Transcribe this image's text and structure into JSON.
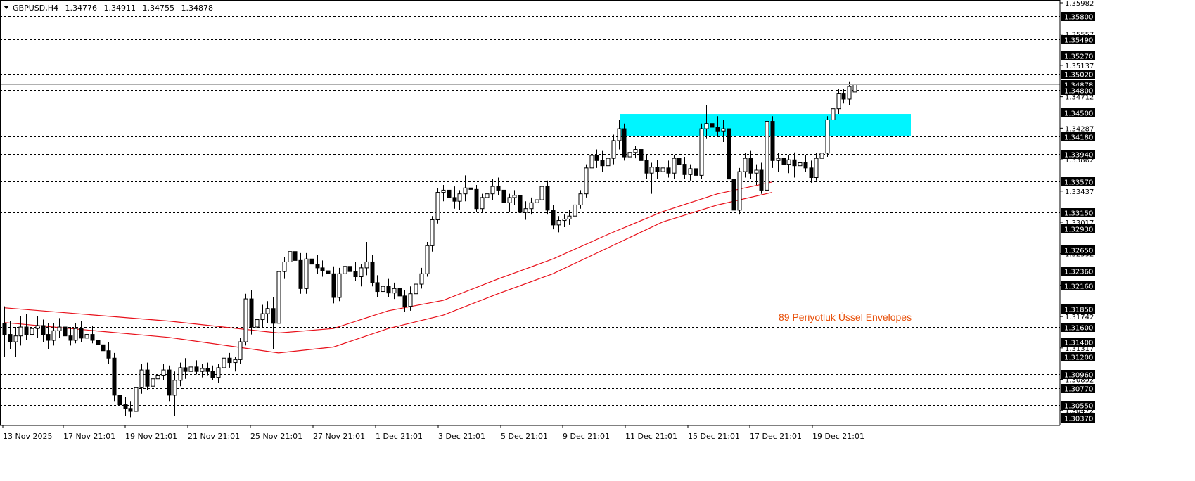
{
  "header": {
    "symbol": "GBPUSD,H4",
    "open": "1.34776",
    "high": "1.34911",
    "low": "1.34755",
    "close": "1.34878"
  },
  "colors": {
    "grid": "#000000",
    "zone": "#00f5ff",
    "envelope": "#e8101a",
    "annotation": "#e8500a",
    "candle_up_fill": "#ffffff",
    "candle_down_fill": "#000000",
    "level_box": "#000000"
  },
  "chart_data": {
    "type": "candlestick",
    "ylim": [
      1.3027,
      1.35982
    ],
    "ytick_labels": [
      "1.35982",
      "1.35557",
      "1.35137",
      "1.34712",
      "1.34287",
      "1.33862",
      "1.33437",
      "1.33017",
      "1.32592",
      "1.32167",
      "1.31742",
      "1.31317",
      "1.30892",
      "1.30472"
    ],
    "level_lines": [
      "1.35800",
      "1.35490",
      "1.35270",
      "1.35020",
      "1.34800",
      "1.34500",
      "1.34180",
      "1.33940",
      "1.33570",
      "1.33150",
      "1.32930",
      "1.32650",
      "1.32360",
      "1.32160",
      "1.31850",
      "1.31600",
      "1.31400",
      "1.31200",
      "1.30960",
      "1.30770",
      "1.30550",
      "1.30370"
    ],
    "current_price": "1.34878",
    "xtick_labels": [
      "13 Nov 2025",
      "17 Nov 21:01",
      "19 Nov 21:01",
      "21 Nov 21:01",
      "25 Nov 21:01",
      "27 Nov 21:01",
      "1 Dec 21:01",
      "3 Dec 21:01",
      "5 Dec 21:01",
      "9 Dec 21:01",
      "11 Dec 21:01",
      "15 Dec 21:01",
      "17 Dec 21:01",
      "19 Dec 21:01"
    ],
    "zone": {
      "low": 1.3418,
      "high": 1.3448
    },
    "annotation": "89  Periyotluk Üssel Envelopes",
    "series_ohlc": [
      [
        1.3165,
        1.3188,
        1.312,
        1.315
      ],
      [
        1.315,
        1.3168,
        1.313,
        1.314
      ],
      [
        1.314,
        1.316,
        1.312,
        1.3148
      ],
      [
        1.3148,
        1.3175,
        1.3135,
        1.316
      ],
      [
        1.316,
        1.3178,
        1.3142,
        1.315
      ],
      [
        1.315,
        1.317,
        1.3135,
        1.3158
      ],
      [
        1.3158,
        1.3175,
        1.3145,
        1.3162
      ],
      [
        1.3162,
        1.317,
        1.314,
        1.315
      ],
      [
        1.315,
        1.3165,
        1.313,
        1.3142
      ],
      [
        1.3142,
        1.3165,
        1.3135,
        1.3155
      ],
      [
        1.3155,
        1.3172,
        1.3145,
        1.316
      ],
      [
        1.316,
        1.317,
        1.314,
        1.3148
      ],
      [
        1.3148,
        1.316,
        1.3135,
        1.3142
      ],
      [
        1.3142,
        1.3165,
        1.3138,
        1.3158
      ],
      [
        1.3158,
        1.3168,
        1.314,
        1.3145
      ],
      [
        1.3145,
        1.316,
        1.3135,
        1.315
      ],
      [
        1.315,
        1.3162,
        1.3138,
        1.3142
      ],
      [
        1.3142,
        1.3155,
        1.313,
        1.3136
      ],
      [
        1.3136,
        1.315,
        1.312,
        1.3128
      ],
      [
        1.3128,
        1.314,
        1.311,
        1.3118
      ],
      [
        1.3118,
        1.3125,
        1.306,
        1.3068
      ],
      [
        1.3068,
        1.3075,
        1.3045,
        1.3055
      ],
      [
        1.3055,
        1.3065,
        1.304,
        1.305
      ],
      [
        1.305,
        1.306,
        1.3038,
        1.3046
      ],
      [
        1.3046,
        1.3085,
        1.304,
        1.3078
      ],
      [
        1.3078,
        1.311,
        1.307,
        1.3102
      ],
      [
        1.3102,
        1.3112,
        1.3075,
        1.308
      ],
      [
        1.308,
        1.3098,
        1.307,
        1.309
      ],
      [
        1.309,
        1.3102,
        1.308,
        1.3095
      ],
      [
        1.3095,
        1.311,
        1.3088,
        1.3102
      ],
      [
        1.3102,
        1.3108,
        1.306,
        1.3068
      ],
      [
        1.3068,
        1.31,
        1.304,
        1.3088
      ],
      [
        1.3088,
        1.3112,
        1.308,
        1.3105
      ],
      [
        1.3105,
        1.3118,
        1.309,
        1.31
      ],
      [
        1.31,
        1.3112,
        1.3092,
        1.3106
      ],
      [
        1.3106,
        1.3115,
        1.3096,
        1.31
      ],
      [
        1.31,
        1.311,
        1.3092,
        1.3104
      ],
      [
        1.3104,
        1.3112,
        1.3095,
        1.31
      ],
      [
        1.31,
        1.3108,
        1.3088,
        1.3092
      ],
      [
        1.3092,
        1.311,
        1.3085,
        1.3105
      ],
      [
        1.3105,
        1.3125,
        1.31,
        1.3118
      ],
      [
        1.3118,
        1.3125,
        1.3105,
        1.3112
      ],
      [
        1.3112,
        1.312,
        1.31,
        1.3116
      ],
      [
        1.3116,
        1.3145,
        1.311,
        1.314
      ],
      [
        1.314,
        1.3205,
        1.3135,
        1.3198
      ],
      [
        1.3198,
        1.321,
        1.315,
        1.316
      ],
      [
        1.316,
        1.318,
        1.315,
        1.317
      ],
      [
        1.317,
        1.319,
        1.316,
        1.3178
      ],
      [
        1.3178,
        1.3195,
        1.3165,
        1.3185
      ],
      [
        1.3185,
        1.32,
        1.313,
        1.3165
      ],
      [
        1.3165,
        1.324,
        1.316,
        1.3235
      ],
      [
        1.3235,
        1.3255,
        1.3225,
        1.3248
      ],
      [
        1.3248,
        1.327,
        1.324,
        1.3262
      ],
      [
        1.3262,
        1.3272,
        1.324,
        1.325
      ],
      [
        1.325,
        1.326,
        1.3205,
        1.3212
      ],
      [
        1.3212,
        1.326,
        1.3205,
        1.3252
      ],
      [
        1.3252,
        1.3262,
        1.3238,
        1.3245
      ],
      [
        1.3245,
        1.3258,
        1.3232,
        1.324
      ],
      [
        1.324,
        1.325,
        1.3228,
        1.3236
      ],
      [
        1.3236,
        1.3248,
        1.3225,
        1.3232
      ],
      [
        1.3232,
        1.3242,
        1.3192,
        1.32
      ],
      [
        1.32,
        1.324,
        1.3195,
        1.3232
      ],
      [
        1.3232,
        1.325,
        1.322,
        1.3242
      ],
      [
        1.3242,
        1.3255,
        1.3228,
        1.3235
      ],
      [
        1.3235,
        1.3248,
        1.3222,
        1.3228
      ],
      [
        1.3228,
        1.3245,
        1.3215,
        1.324
      ],
      [
        1.324,
        1.3275,
        1.323,
        1.3248
      ],
      [
        1.3248,
        1.3258,
        1.3215,
        1.322
      ],
      [
        1.322,
        1.323,
        1.32,
        1.3208
      ],
      [
        1.3208,
        1.3222,
        1.3198,
        1.3215
      ],
      [
        1.3215,
        1.3225,
        1.32,
        1.3206
      ],
      [
        1.3206,
        1.322,
        1.3198,
        1.3212
      ],
      [
        1.3212,
        1.322,
        1.3195,
        1.3202
      ],
      [
        1.3202,
        1.321,
        1.318,
        1.3188
      ],
      [
        1.3188,
        1.3215,
        1.3182,
        1.3205
      ],
      [
        1.3205,
        1.3225,
        1.32,
        1.3218
      ],
      [
        1.3218,
        1.324,
        1.3212,
        1.3232
      ],
      [
        1.3232,
        1.3275,
        1.3228,
        1.327
      ],
      [
        1.327,
        1.331,
        1.3262,
        1.3305
      ],
      [
        1.3305,
        1.3348,
        1.33,
        1.3342
      ],
      [
        1.3342,
        1.3352,
        1.333,
        1.3345
      ],
      [
        1.3345,
        1.3355,
        1.3328,
        1.3335
      ],
      [
        1.3335,
        1.335,
        1.332,
        1.333
      ],
      [
        1.333,
        1.3345,
        1.3318,
        1.334
      ],
      [
        1.334,
        1.3365,
        1.333,
        1.3348
      ],
      [
        1.3348,
        1.3385,
        1.334,
        1.3346
      ],
      [
        1.3346,
        1.3352,
        1.3315,
        1.332
      ],
      [
        1.332,
        1.334,
        1.3315,
        1.3335
      ],
      [
        1.3335,
        1.3345,
        1.3322,
        1.334
      ],
      [
        1.334,
        1.336,
        1.3332,
        1.335
      ],
      [
        1.335,
        1.3362,
        1.3338,
        1.3345
      ],
      [
        1.3345,
        1.3355,
        1.3322,
        1.3328
      ],
      [
        1.3328,
        1.334,
        1.3315,
        1.3335
      ],
      [
        1.3335,
        1.3345,
        1.3325,
        1.3338
      ],
      [
        1.3338,
        1.3348,
        1.331,
        1.3315
      ],
      [
        1.3315,
        1.333,
        1.3305,
        1.332
      ],
      [
        1.332,
        1.3335,
        1.3312,
        1.3328
      ],
      [
        1.3328,
        1.3338,
        1.3318,
        1.3332
      ],
      [
        1.3332,
        1.3358,
        1.3325,
        1.335
      ],
      [
        1.335,
        1.3358,
        1.3312,
        1.3318
      ],
      [
        1.3318,
        1.3325,
        1.3292,
        1.3298
      ],
      [
        1.3298,
        1.331,
        1.3288,
        1.3304
      ],
      [
        1.3304,
        1.3312,
        1.3295,
        1.3306
      ],
      [
        1.3306,
        1.3318,
        1.3298,
        1.331
      ],
      [
        1.331,
        1.333,
        1.33,
        1.3325
      ],
      [
        1.3325,
        1.3345,
        1.332,
        1.334
      ],
      [
        1.334,
        1.338,
        1.3335,
        1.3375
      ],
      [
        1.3375,
        1.3398,
        1.3368,
        1.3392
      ],
      [
        1.3392,
        1.34,
        1.3375,
        1.3385
      ],
      [
        1.3385,
        1.3398,
        1.337,
        1.3378
      ],
      [
        1.3378,
        1.3392,
        1.3365,
        1.3388
      ],
      [
        1.3388,
        1.342,
        1.338,
        1.3412
      ],
      [
        1.3412,
        1.344,
        1.34,
        1.3428
      ],
      [
        1.3428,
        1.3435,
        1.3385,
        1.339
      ],
      [
        1.339,
        1.3402,
        1.338,
        1.3396
      ],
      [
        1.3396,
        1.3405,
        1.3388,
        1.34
      ],
      [
        1.34,
        1.341,
        1.338,
        1.3385
      ],
      [
        1.3385,
        1.3392,
        1.336,
        1.3368
      ],
      [
        1.3368,
        1.3382,
        1.334,
        1.3376
      ],
      [
        1.3376,
        1.3386,
        1.336,
        1.337
      ],
      [
        1.337,
        1.338,
        1.3358,
        1.3375
      ],
      [
        1.3375,
        1.3385,
        1.3362,
        1.3368
      ],
      [
        1.3368,
        1.3392,
        1.336,
        1.3388
      ],
      [
        1.3388,
        1.3398,
        1.3375,
        1.338
      ],
      [
        1.338,
        1.339,
        1.336,
        1.3366
      ],
      [
        1.3366,
        1.338,
        1.3358,
        1.3374
      ],
      [
        1.3374,
        1.3385,
        1.336,
        1.3365
      ],
      [
        1.3365,
        1.3435,
        1.336,
        1.3428
      ],
      [
        1.3428,
        1.346,
        1.3415,
        1.3435
      ],
      [
        1.3435,
        1.3452,
        1.342,
        1.343
      ],
      [
        1.343,
        1.3445,
        1.3418,
        1.3425
      ],
      [
        1.3425,
        1.344,
        1.341,
        1.3428
      ],
      [
        1.3428,
        1.3435,
        1.335,
        1.336
      ],
      [
        1.336,
        1.337,
        1.3308,
        1.3318
      ],
      [
        1.3318,
        1.3375,
        1.3312,
        1.337
      ],
      [
        1.337,
        1.3395,
        1.3362,
        1.3388
      ],
      [
        1.3388,
        1.3398,
        1.336,
        1.3368
      ],
      [
        1.3368,
        1.338,
        1.3352,
        1.3372
      ],
      [
        1.3372,
        1.3382,
        1.334,
        1.3345
      ],
      [
        1.3345,
        1.3445,
        1.334,
        1.3438
      ],
      [
        1.3438,
        1.3445,
        1.3375,
        1.3385
      ],
      [
        1.3385,
        1.3395,
        1.337,
        1.3388
      ],
      [
        1.3388,
        1.3395,
        1.3372,
        1.338
      ],
      [
        1.338,
        1.3392,
        1.3368,
        1.3386
      ],
      [
        1.3386,
        1.3396,
        1.3362,
        1.3378
      ],
      [
        1.3378,
        1.339,
        1.3355,
        1.3382
      ],
      [
        1.3382,
        1.3392,
        1.337,
        1.3375
      ],
      [
        1.3375,
        1.3385,
        1.3355,
        1.3362
      ],
      [
        1.3362,
        1.3395,
        1.3358,
        1.3388
      ],
      [
        1.3388,
        1.34,
        1.338,
        1.3395
      ],
      [
        1.3395,
        1.3445,
        1.339,
        1.344
      ],
      [
        1.344,
        1.3462,
        1.343,
        1.3455
      ],
      [
        1.3455,
        1.3482,
        1.3448,
        1.3476
      ],
      [
        1.3476,
        1.3482,
        1.3462,
        1.3468
      ],
      [
        1.3468,
        1.3492,
        1.346,
        1.3485
      ],
      [
        1.34776,
        1.34911,
        1.34755,
        1.34878
      ]
    ],
    "envelope_upper": [
      [
        0,
        1.3186
      ],
      [
        30,
        1.3168
      ],
      [
        50,
        1.3152
      ],
      [
        60,
        1.3158
      ],
      [
        70,
        1.3182
      ],
      [
        80,
        1.3196
      ],
      [
        90,
        1.3225
      ],
      [
        100,
        1.3252
      ],
      [
        110,
        1.3285
      ],
      [
        120,
        1.3316
      ],
      [
        130,
        1.334
      ],
      [
        140,
        1.3356
      ]
    ],
    "envelope_lower": [
      [
        0,
        1.3166
      ],
      [
        30,
        1.3146
      ],
      [
        50,
        1.3125
      ],
      [
        60,
        1.3133
      ],
      [
        70,
        1.3158
      ],
      [
        80,
        1.3176
      ],
      [
        90,
        1.3205
      ],
      [
        100,
        1.3232
      ],
      [
        110,
        1.3267
      ],
      [
        120,
        1.3302
      ],
      [
        130,
        1.3325
      ],
      [
        140,
        1.3342
      ]
    ]
  }
}
